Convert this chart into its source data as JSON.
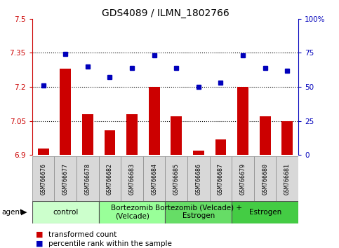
{
  "title": "GDS4089 / ILMN_1802766",
  "samples": [
    "GSM766676",
    "GSM766677",
    "GSM766678",
    "GSM766682",
    "GSM766683",
    "GSM766684",
    "GSM766685",
    "GSM766686",
    "GSM766687",
    "GSM766679",
    "GSM766680",
    "GSM766681"
  ],
  "bar_values": [
    6.93,
    7.28,
    7.08,
    7.01,
    7.08,
    7.2,
    7.07,
    6.92,
    6.97,
    7.2,
    7.07,
    7.05
  ],
  "dot_values": [
    51,
    74,
    65,
    57,
    64,
    73,
    64,
    50,
    53,
    73,
    64,
    62
  ],
  "bar_color": "#cc0000",
  "dot_color": "#0000bb",
  "bar_bottom": 6.9,
  "ylim_left": [
    6.9,
    7.5
  ],
  "ylim_right": [
    0,
    100
  ],
  "yticks_left": [
    6.9,
    7.05,
    7.2,
    7.35,
    7.5
  ],
  "yticks_right": [
    0,
    25,
    50,
    75,
    100
  ],
  "ytick_labels_left": [
    "6.9",
    "7.05",
    "7.2",
    "7.35",
    "7.5"
  ],
  "ytick_labels_right": [
    "0",
    "25",
    "50",
    "75",
    "100%"
  ],
  "hlines": [
    7.05,
    7.2,
    7.35
  ],
  "groups": [
    {
      "label": "control",
      "start": 0,
      "end": 3,
      "color": "#ccffcc"
    },
    {
      "label": "Bortezomib\n(Velcade)",
      "start": 3,
      "end": 6,
      "color": "#99ff99"
    },
    {
      "label": "Bortezomib (Velcade) +\nEstrogen",
      "start": 6,
      "end": 9,
      "color": "#66dd66"
    },
    {
      "label": "Estrogen",
      "start": 9,
      "end": 12,
      "color": "#44cc44"
    }
  ],
  "agent_label": "agent",
  "legend_bar_label": "transformed count",
  "legend_dot_label": "percentile rank within the sample",
  "tick_label_color_left": "#cc0000",
  "tick_label_color_right": "#0000bb",
  "title_fontsize": 10,
  "tick_fontsize": 7.5,
  "sample_fontsize": 6,
  "group_fontsize": 7.5,
  "legend_fontsize": 7.5
}
